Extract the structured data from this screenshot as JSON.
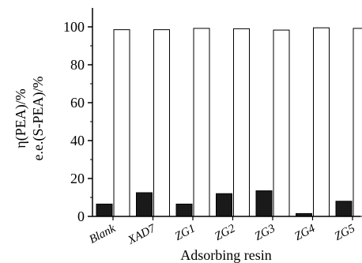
{
  "chart_data": {
    "type": "bar",
    "categories": [
      "Blank",
      "XAD7",
      "ZG1",
      "ZG2",
      "ZG3",
      "ZG4",
      "ZG5"
    ],
    "series": [
      {
        "values": [
          6.5,
          12.5,
          6.5,
          12,
          13.5,
          1.5,
          8
        ],
        "color": "#1a1a1a"
      },
      {
        "values": [
          98.5,
          98.5,
          99.2,
          99,
          98.3,
          99.5,
          99.2
        ],
        "color": "#ffffff"
      }
    ],
    "xlabel": "Adsorbing resin",
    "ylabel_lines": [
      "η(PEA)/%",
      "e.e.(S-PEA)/%"
    ],
    "ylim": [
      0,
      110
    ],
    "yticks": [
      0,
      20,
      40,
      60,
      80,
      100
    ],
    "grid": false,
    "legend": "none"
  }
}
